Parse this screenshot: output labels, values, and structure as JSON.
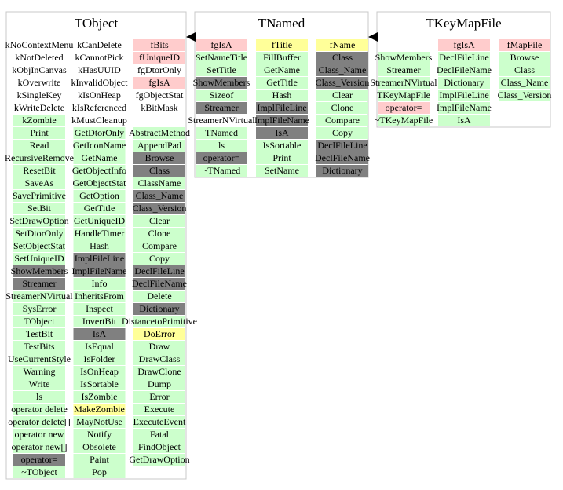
{
  "classes": [
    {
      "name": "TObject",
      "columns": [
        {
          "members": [
            {
              "text": "kNoContextMenu",
              "color": "#ffffff"
            },
            {
              "text": "kNotDeleted",
              "color": "#ffffff"
            },
            {
              "text": "kObjInCanvas",
              "color": "#ffffff"
            },
            {
              "text": "kOverwrite",
              "color": "#ffffff"
            },
            {
              "text": "kSingleKey",
              "color": "#ffffff"
            },
            {
              "text": "kWriteDelete",
              "color": "#ffffff"
            },
            {
              "text": "kZombie",
              "color": "#ccffcc"
            }
          ],
          "methods": [
            {
              "text": "Print",
              "color": "#ccffcc"
            },
            {
              "text": "Read",
              "color": "#ccffcc"
            },
            {
              "text": "RecursiveRemove",
              "color": "#ccffcc"
            },
            {
              "text": "ResetBit",
              "color": "#ccffcc"
            },
            {
              "text": "SaveAs",
              "color": "#ccffcc"
            },
            {
              "text": "SavePrimitive",
              "color": "#ccffcc"
            },
            {
              "text": "SetBit",
              "color": "#ccffcc"
            },
            {
              "text": "SetDrawOption",
              "color": "#ccffcc"
            },
            {
              "text": "SetDtorOnly",
              "color": "#ccffcc"
            },
            {
              "text": "SetObjectStat",
              "color": "#ccffcc"
            },
            {
              "text": "SetUniqueID",
              "color": "#ccffcc"
            },
            {
              "text": "ShowMembers",
              "color": "#808080"
            },
            {
              "text": "Streamer",
              "color": "#808080"
            },
            {
              "text": "StreamerNVirtual",
              "color": "#ccffcc"
            },
            {
              "text": "SysError",
              "color": "#ccffcc"
            },
            {
              "text": "TObject",
              "color": "#ccffcc"
            },
            {
              "text": "TestBit",
              "color": "#ccffcc"
            },
            {
              "text": "TestBits",
              "color": "#ccffcc"
            },
            {
              "text": "UseCurrentStyle",
              "color": "#ccffcc"
            },
            {
              "text": "Warning",
              "color": "#ccffcc"
            },
            {
              "text": "Write",
              "color": "#ccffcc"
            },
            {
              "text": "ls",
              "color": "#ccffcc"
            },
            {
              "text": "operator delete",
              "color": "#ccffcc"
            },
            {
              "text": "operator delete[]",
              "color": "#ccffcc"
            },
            {
              "text": "operator new",
              "color": "#ccffcc"
            },
            {
              "text": "operator new[]",
              "color": "#ccffcc"
            },
            {
              "text": "operator=",
              "color": "#808080"
            },
            {
              "text": "~TObject",
              "color": "#ccffcc"
            }
          ]
        },
        {
          "members": [
            {
              "text": "kCanDelete",
              "color": "#ffffff"
            },
            {
              "text": "kCannotPick",
              "color": "#ffffff"
            },
            {
              "text": "kHasUUID",
              "color": "#ffffff"
            },
            {
              "text": "kInvalidObject",
              "color": "#ffffff"
            },
            {
              "text": "kIsOnHeap",
              "color": "#ffffff"
            },
            {
              "text": "kIsReferenced",
              "color": "#ffffff"
            },
            {
              "text": "kMustCleanup",
              "color": "#ffffff"
            }
          ],
          "methods": [
            {
              "text": "GetDtorOnly",
              "color": "#ccffcc"
            },
            {
              "text": "GetIconName",
              "color": "#ccffcc"
            },
            {
              "text": "GetName",
              "color": "#ccffcc"
            },
            {
              "text": "GetObjectInfo",
              "color": "#ccffcc"
            },
            {
              "text": "GetObjectStat",
              "color": "#ccffcc"
            },
            {
              "text": "GetOption",
              "color": "#ccffcc"
            },
            {
              "text": "GetTitle",
              "color": "#ccffcc"
            },
            {
              "text": "GetUniqueID",
              "color": "#ccffcc"
            },
            {
              "text": "HandleTimer",
              "color": "#ccffcc"
            },
            {
              "text": "Hash",
              "color": "#ccffcc"
            },
            {
              "text": "ImplFileLine",
              "color": "#808080"
            },
            {
              "text": "ImplFileName",
              "color": "#808080"
            },
            {
              "text": "Info",
              "color": "#ccffcc"
            },
            {
              "text": "InheritsFrom",
              "color": "#ccffcc"
            },
            {
              "text": "Inspect",
              "color": "#ccffcc"
            },
            {
              "text": "InvertBit",
              "color": "#ccffcc"
            },
            {
              "text": "IsA",
              "color": "#808080"
            },
            {
              "text": "IsEqual",
              "color": "#ccffcc"
            },
            {
              "text": "IsFolder",
              "color": "#ccffcc"
            },
            {
              "text": "IsOnHeap",
              "color": "#ccffcc"
            },
            {
              "text": "IsSortable",
              "color": "#ccffcc"
            },
            {
              "text": "IsZombie",
              "color": "#ccffcc"
            },
            {
              "text": "MakeZombie",
              "color": "#ffff99"
            },
            {
              "text": "MayNotUse",
              "color": "#ccffcc"
            },
            {
              "text": "Notify",
              "color": "#ccffcc"
            },
            {
              "text": "Obsolete",
              "color": "#ccffcc"
            },
            {
              "text": "Paint",
              "color": "#ccffcc"
            },
            {
              "text": "Pop",
              "color": "#ccffcc"
            }
          ]
        },
        {
          "members": [
            {
              "text": "fBits",
              "color": "#ffcccc"
            },
            {
              "text": "fUniqueID",
              "color": "#ffcccc"
            },
            {
              "text": "fgDtorOnly",
              "color": "#ffffff"
            },
            {
              "text": "fgIsA",
              "color": "#ffcccc"
            },
            {
              "text": "fgObjectStat",
              "color": "#ffffff"
            },
            {
              "text": "kBitMask",
              "color": "#ffffff"
            }
          ],
          "methods": [
            {
              "text": "AbstractMethod",
              "color": "#ccffcc"
            },
            {
              "text": "AppendPad",
              "color": "#ccffcc"
            },
            {
              "text": "Browse",
              "color": "#808080"
            },
            {
              "text": "Class",
              "color": "#808080"
            },
            {
              "text": "ClassName",
              "color": "#ccffcc"
            },
            {
              "text": "Class_Name",
              "color": "#808080"
            },
            {
              "text": "Class_Version",
              "color": "#808080"
            },
            {
              "text": "Clear",
              "color": "#ccffcc"
            },
            {
              "text": "Clone",
              "color": "#ccffcc"
            },
            {
              "text": "Compare",
              "color": "#ccffcc"
            },
            {
              "text": "Copy",
              "color": "#ccffcc"
            },
            {
              "text": "DeclFileLine",
              "color": "#808080"
            },
            {
              "text": "DeclFileName",
              "color": "#808080"
            },
            {
              "text": "Delete",
              "color": "#ccffcc"
            },
            {
              "text": "Dictionary",
              "color": "#808080"
            },
            {
              "text": "DistancetoPrimitive",
              "color": "#ccffcc"
            },
            {
              "text": "DoError",
              "color": "#ffff99"
            },
            {
              "text": "Draw",
              "color": "#ccffcc"
            },
            {
              "text": "DrawClass",
              "color": "#ccffcc"
            },
            {
              "text": "DrawClone",
              "color": "#ccffcc"
            },
            {
              "text": "Dump",
              "color": "#ccffcc"
            },
            {
              "text": "Error",
              "color": "#ccffcc"
            },
            {
              "text": "Execute",
              "color": "#ccffcc"
            },
            {
              "text": "ExecuteEvent",
              "color": "#ccffcc"
            },
            {
              "text": "Fatal",
              "color": "#ccffcc"
            },
            {
              "text": "FindObject",
              "color": "#ccffcc"
            },
            {
              "text": "GetDrawOption",
              "color": "#ccffcc"
            }
          ]
        }
      ]
    },
    {
      "name": "TNamed",
      "columns": [
        {
          "members": [
            {
              "text": "fgIsA",
              "color": "#ffcccc"
            }
          ],
          "methods": [
            {
              "text": "SetNameTitle",
              "color": "#ccffcc"
            },
            {
              "text": "SetTitle",
              "color": "#ccffcc"
            },
            {
              "text": "ShowMembers",
              "color": "#808080"
            },
            {
              "text": "Sizeof",
              "color": "#ccffcc"
            },
            {
              "text": "Streamer",
              "color": "#808080"
            },
            {
              "text": "StreamerNVirtual",
              "color": "#ffffff"
            },
            {
              "text": "TNamed",
              "color": "#ccffcc"
            },
            {
              "text": "ls",
              "color": "#ccffcc"
            },
            {
              "text": "operator=",
              "color": "#808080"
            },
            {
              "text": "~TNamed",
              "color": "#ccffcc"
            }
          ]
        },
        {
          "members": [
            {
              "text": "fTitle",
              "color": "#ffff99"
            }
          ],
          "methods": [
            {
              "text": "FillBuffer",
              "color": "#ccffcc"
            },
            {
              "text": "GetName",
              "color": "#ccffcc"
            },
            {
              "text": "GetTitle",
              "color": "#ccffcc"
            },
            {
              "text": "Hash",
              "color": "#ccffcc"
            },
            {
              "text": "ImplFileLine",
              "color": "#808080"
            },
            {
              "text": "ImplFileName",
              "color": "#808080"
            },
            {
              "text": "IsA",
              "color": "#808080"
            },
            {
              "text": "IsSortable",
              "color": "#ccffcc"
            },
            {
              "text": "Print",
              "color": "#ccffcc"
            },
            {
              "text": "SetName",
              "color": "#ccffcc"
            }
          ]
        },
        {
          "members": [
            {
              "text": "fName",
              "color": "#ffff99"
            }
          ],
          "methods": [
            {
              "text": "Class",
              "color": "#808080"
            },
            {
              "text": "Class_Name",
              "color": "#808080"
            },
            {
              "text": "Class_Version",
              "color": "#808080"
            },
            {
              "text": "Clear",
              "color": "#ccffcc"
            },
            {
              "text": "Clone",
              "color": "#ccffcc"
            },
            {
              "text": "Compare",
              "color": "#ccffcc"
            },
            {
              "text": "Copy",
              "color": "#ccffcc"
            },
            {
              "text": "DeclFileLine",
              "color": "#808080"
            },
            {
              "text": "DeclFileName",
              "color": "#808080"
            },
            {
              "text": "Dictionary",
              "color": "#808080"
            }
          ]
        }
      ]
    },
    {
      "name": "TKeyMapFile",
      "columns": [
        {
          "members": [],
          "methods": [
            {
              "text": "ShowMembers",
              "color": "#ccffcc"
            },
            {
              "text": "Streamer",
              "color": "#ccffcc"
            },
            {
              "text": "StreamerNVirtual",
              "color": "#ccffcc"
            },
            {
              "text": "TKeyMapFile",
              "color": "#ccffcc"
            },
            {
              "text": "operator=",
              "color": "#ffcccc"
            },
            {
              "text": "~TKeyMapFile",
              "color": "#ccffcc"
            }
          ]
        },
        {
          "members": [
            {
              "text": "fgIsA",
              "color": "#ffcccc"
            }
          ],
          "methods": [
            {
              "text": "DeclFileLine",
              "color": "#ccffcc"
            },
            {
              "text": "DeclFileName",
              "color": "#ccffcc"
            },
            {
              "text": "Dictionary",
              "color": "#ccffcc"
            },
            {
              "text": "ImplFileLine",
              "color": "#ccffcc"
            },
            {
              "text": "ImplFileName",
              "color": "#ccffcc"
            },
            {
              "text": "IsA",
              "color": "#ccffcc"
            }
          ]
        },
        {
          "members": [
            {
              "text": "fMapFile",
              "color": "#ffcccc"
            }
          ],
          "methods": [
            {
              "text": "Browse",
              "color": "#ccffcc"
            },
            {
              "text": "Class",
              "color": "#ccffcc"
            },
            {
              "text": "Class_Name",
              "color": "#ccffcc"
            },
            {
              "text": "Class_Version",
              "color": "#ccffcc"
            }
          ]
        }
      ]
    }
  ]
}
